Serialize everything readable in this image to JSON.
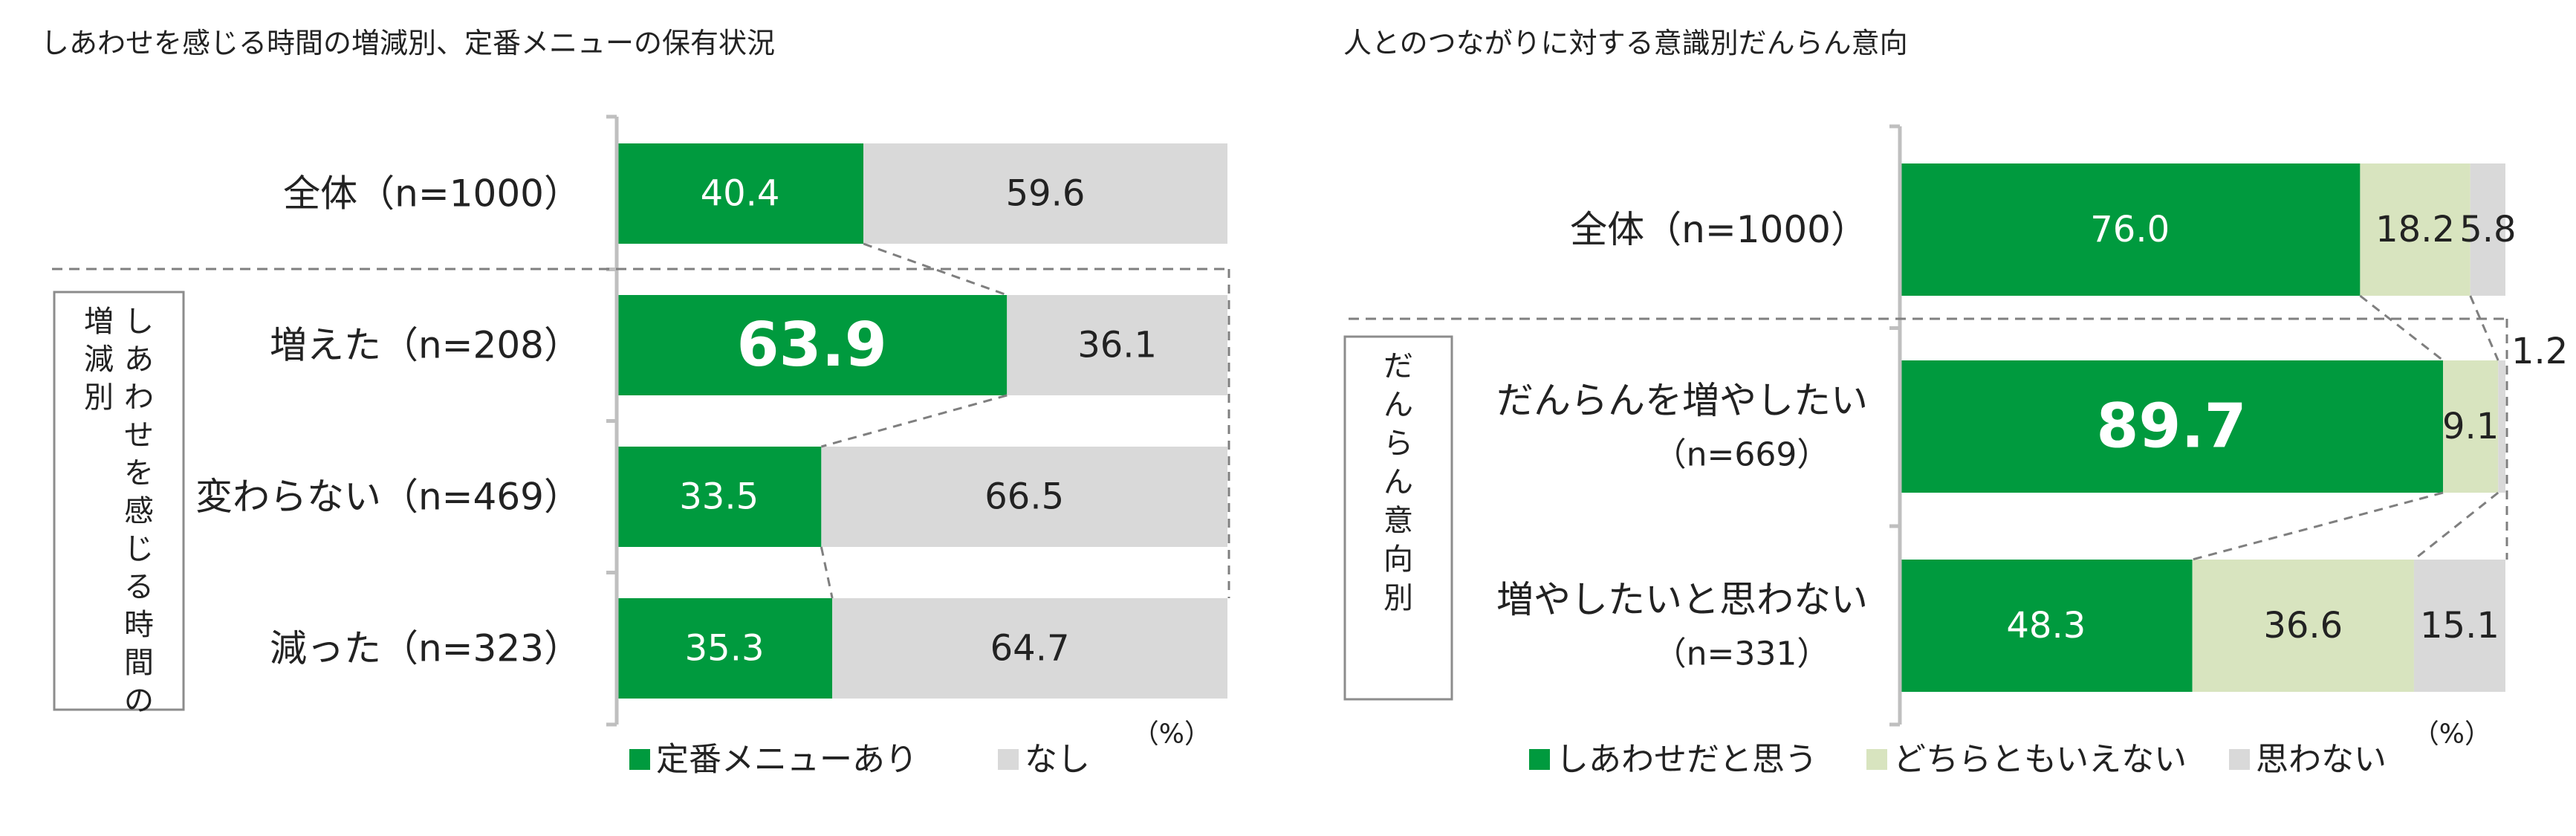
{
  "colors": {
    "accent": "#009a3e",
    "light_green": "#d8e4bf",
    "gray": "#d9d9d9"
  },
  "chart_data": [
    {
      "type": "bar",
      "stacked": true,
      "orientation": "horizontal",
      "title": "しあわせを感じる時間の増減別、定番メニューの保有状況",
      "unit": "（%）",
      "group_label": "しあわせを感じる時間の増減別",
      "categories": [
        "全体（n=1000）",
        "増えた（n=208）",
        "変わらない（n=469）",
        "減った（n=323）"
      ],
      "series": [
        {
          "name": "定番メニューあり",
          "values": [
            40.4,
            63.9,
            33.5,
            35.3
          ],
          "labels": [
            "40.4",
            "63.9",
            "33.5",
            "35.3"
          ],
          "color": "#009a3e"
        },
        {
          "name": "なし",
          "values": [
            59.6,
            36.1,
            66.5,
            64.7
          ],
          "labels": [
            "59.6",
            "36.1",
            "66.5",
            "64.7"
          ],
          "color": "#d9d9d9"
        }
      ],
      "highlight": {
        "category_index": 1,
        "series_index": 0
      },
      "xlim": [
        0,
        100
      ],
      "legend": "bottom"
    },
    {
      "type": "bar",
      "stacked": true,
      "orientation": "horizontal",
      "title": "人とのつながりに対する意識別だんらん意向",
      "unit": "（%）",
      "group_label": "だんらん意向別",
      "categories": [
        "全体（n=1000）",
        "だんらんを増やしたい|（n=669）",
        "増やしたいと思わない|（n=331）"
      ],
      "series": [
        {
          "name": "しあわせだと思う",
          "values": [
            76.0,
            89.7,
            48.3
          ],
          "labels": [
            "76.0",
            "89.7",
            "48.3"
          ],
          "color": "#009a3e"
        },
        {
          "name": "どちらともいえない",
          "values": [
            18.2,
            9.1,
            36.6
          ],
          "labels": [
            "18.2",
            "9.1",
            "36.6"
          ],
          "color": "#d8e4bf"
        },
        {
          "name": "思わない",
          "values": [
            5.8,
            1.2,
            15.1
          ],
          "labels": [
            "5.8",
            "1.2",
            "15.1"
          ],
          "color": "#d9d9d9"
        }
      ],
      "highlight": {
        "category_index": 1,
        "series_index": 0
      },
      "xlim": [
        0,
        100
      ],
      "legend": "bottom"
    }
  ]
}
